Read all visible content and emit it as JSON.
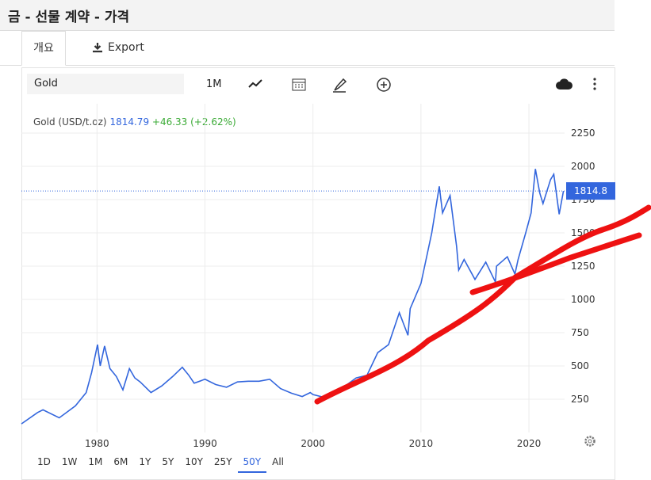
{
  "header": {
    "title": "금 - 선물 계약 - 가격"
  },
  "tabs": [
    "개요",
    "Export"
  ],
  "toolbar": {
    "symbol": "Gold",
    "interval": "1M"
  },
  "legend": {
    "last": "1814.79",
    "change": "+46.33 (+2.62%)"
  },
  "ranges": [
    "1D",
    "1W",
    "1M",
    "6M",
    "1Y",
    "5Y",
    "10Y",
    "25Y",
    "50Y",
    "All"
  ],
  "active_range": "50Y",
  "chart_data": {
    "type": "line",
    "x": [
      1973,
      1974.5,
      1975,
      1976.5,
      1977,
      1978,
      1979,
      1979.5,
      1980.05,
      1980.3,
      1980.7,
      1981.2,
      1981.8,
      1982.4,
      1983,
      1983.5,
      1984,
      1985,
      1986,
      1987,
      1987.9,
      1988.5,
      1989,
      1990,
      1991,
      1992,
      1993,
      1994,
      1995,
      1996,
      1997,
      1998,
      1999,
      1999.75,
      2000,
      2001,
      2002,
      2003,
      2004,
      2005,
      2006,
      2007,
      2008,
      2008.8,
      2009,
      2010,
      2011,
      2011.7,
      2012,
      2012.7,
      2013.3,
      2013.5,
      2014,
      2015,
      2016,
      2016.9,
      2017,
      2018,
      2018.7,
      2019,
      2019.7,
      2020.2,
      2020.6,
      2021,
      2021.3,
      2022,
      2022.3,
      2022.8,
      2023.2
    ],
    "series": [
      {
        "name": "Gold (USD/t.oz)",
        "color": "#3366dd",
        "values": [
          65,
          150,
          170,
          110,
          140,
          200,
          300,
          450,
          660,
          500,
          650,
          480,
          420,
          320,
          480,
          410,
          380,
          300,
          350,
          420,
          490,
          430,
          370,
          400,
          360,
          340,
          380,
          385,
          385,
          400,
          330,
          295,
          270,
          300,
          285,
          265,
          310,
          350,
          410,
          430,
          600,
          660,
          900,
          730,
          930,
          1120,
          1500,
          1850,
          1650,
          1780,
          1400,
          1220,
          1300,
          1150,
          1280,
          1130,
          1250,
          1320,
          1190,
          1300,
          1500,
          1650,
          1980,
          1800,
          1720,
          1900,
          1940,
          1640,
          1814.79
        ]
      }
    ],
    "last_price": 1814.8,
    "xlim": [
      1973,
      2023.3
    ],
    "ylim": [
      0,
      2470
    ],
    "xticks": [
      1980,
      1990,
      2000,
      2010,
      2020
    ],
    "yticks": [
      250,
      500,
      750,
      1000,
      1250,
      1500,
      1750,
      2000,
      2250
    ],
    "grid": true
  }
}
